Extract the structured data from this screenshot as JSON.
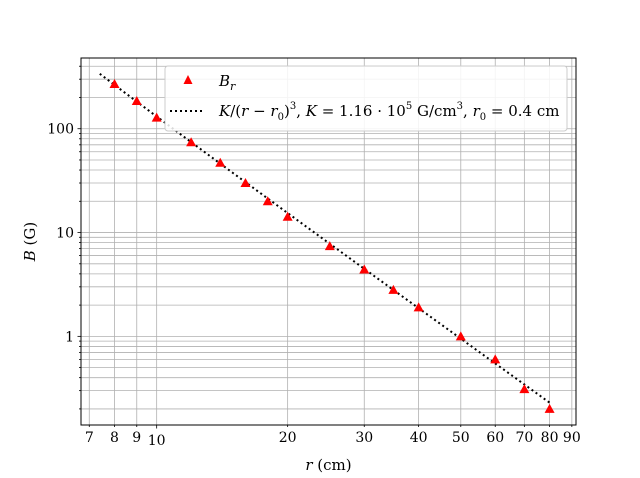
{
  "chart_data": {
    "type": "scatter",
    "xscale": "log",
    "yscale": "log",
    "xlim": [
      6.7,
      92
    ],
    "ylim": [
      0.14,
      480
    ],
    "grid": "both",
    "xlabel": "r (cm)",
    "ylabel": "B (G)",
    "legend_placement": "top-right",
    "x_ticks": [
      7,
      8,
      9,
      10,
      20,
      30,
      40,
      50,
      60,
      70,
      80,
      90
    ],
    "x_tick_labels": [
      "7",
      "8",
      "9",
      "10",
      "20",
      "30",
      "40",
      "50",
      "60",
      "70",
      "80",
      "90"
    ],
    "y_ticks": [
      1,
      10,
      100
    ],
    "y_tick_labels": [
      "1",
      "10",
      "100"
    ],
    "series": [
      {
        "name": "B_r",
        "kind": "scatter",
        "marker": "triangle",
        "color": "#ff0000",
        "x": [
          8,
          9,
          10,
          12,
          14,
          16,
          18,
          20,
          25,
          30,
          35,
          40,
          50,
          60,
          70,
          80
        ],
        "y": [
          270,
          185,
          128,
          74,
          47,
          30,
          20,
          14.2,
          7.4,
          4.4,
          2.8,
          1.9,
          1.0,
          0.6,
          0.31,
          0.2
        ]
      },
      {
        "name": "K/(r − r₀)³,  K = 1.16 · 10⁵ G/cm³,  r₀ = 0.4 cm",
        "kind": "line",
        "style": "dotted",
        "color": "#000000",
        "K": 116000,
        "r0": 0.4,
        "x_range": [
          7.4,
          80
        ]
      }
    ]
  }
}
